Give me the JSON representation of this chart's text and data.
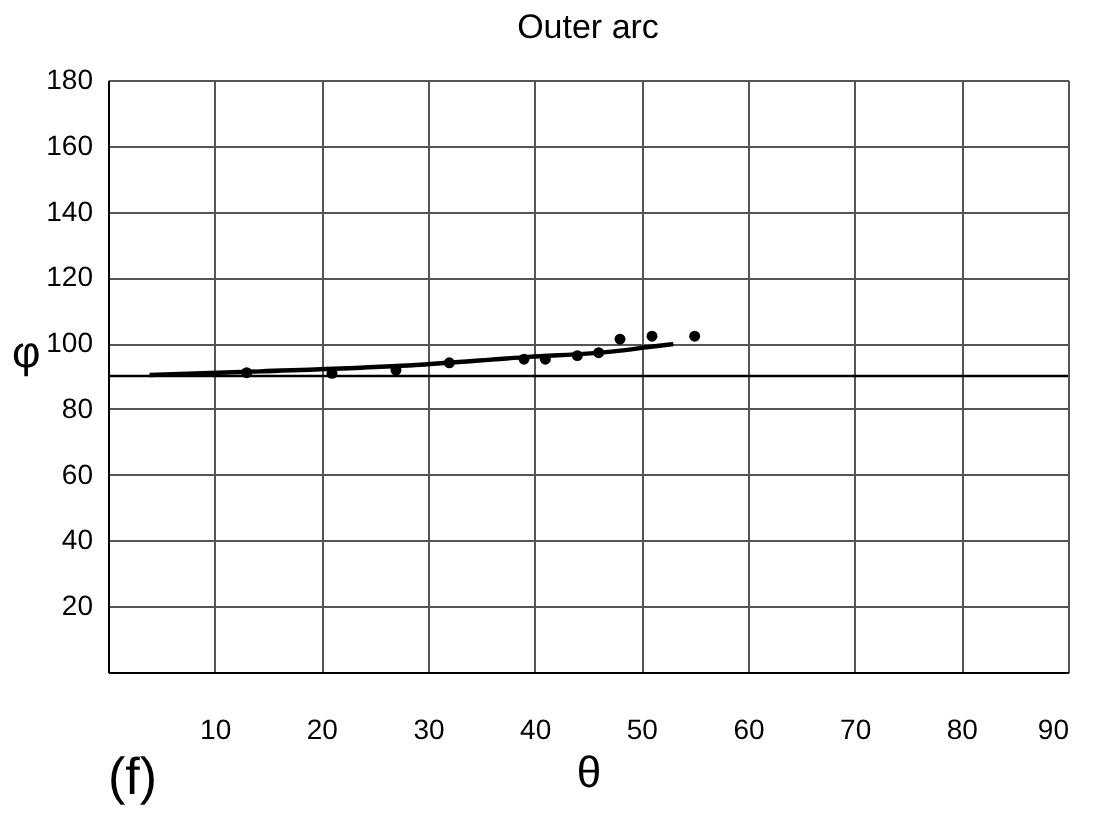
{
  "chart_data": {
    "type": "scatter",
    "title": "Outer arc",
    "xlabel": "θ",
    "ylabel": "φ",
    "annotations": [
      "(f)"
    ],
    "xlim": [
      0,
      90
    ],
    "ylim": [
      0,
      180
    ],
    "xticks": [
      10,
      20,
      30,
      40,
      50,
      60,
      70,
      80,
      90
    ],
    "yticks": [
      20,
      40,
      60,
      80,
      100,
      120,
      140,
      160,
      180
    ],
    "grid": true,
    "marker": "circle",
    "ref_lines": [
      {
        "axis": "y",
        "value": 90,
        "color": "#000000"
      }
    ],
    "series": [
      {
        "color": "#000000",
        "x": [
          13,
          21,
          27,
          32,
          39,
          41,
          44,
          46,
          48,
          51,
          55
        ],
        "values": [
          91,
          90.8,
          91.8,
          94,
          95.1,
          95.1,
          96.2,
          97.1,
          101.2,
          102.1,
          102.1
        ]
      },
      {
        "type": "line",
        "color": "#000000",
        "marker": "none",
        "line_style": "solid",
        "x": [
          3.9,
          14.3,
          27.5,
          39.4,
          47.4,
          50.7,
          53
        ],
        "values": [
          90.3,
          91.4,
          93.1,
          95.8,
          97.5,
          98.8,
          99.7
        ]
      }
    ]
  }
}
